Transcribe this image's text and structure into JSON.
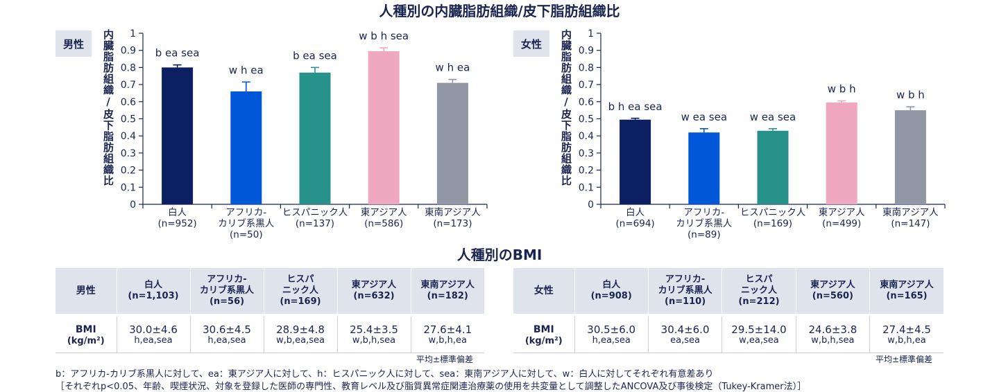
{
  "main_title": "人種別の内臓脂肪組織/皮下脂肪組織比",
  "bmi_title": "人種別のBMI",
  "ylabel": "内臓脂肪組織/皮下脂肪組織比",
  "colors": {
    "white": "#0c1f62",
    "afro": "#0057d8",
    "hispanic": "#27928a",
    "east_asian": "#f0a8c0",
    "southeast_asian": "#8f97a5",
    "axis": "#1a2450"
  },
  "chart_data": [
    {
      "type": "bar",
      "panel": "男性",
      "ylim": [
        0,
        1
      ],
      "yticks": [
        "0",
        "0.1",
        "0.2",
        "0.3",
        "0.4",
        "0.5",
        "0.6",
        "0.7",
        "0.8",
        "0.9",
        "1"
      ],
      "categories": [
        {
          "lines": [
            "白人",
            "(n=952)"
          ]
        },
        {
          "lines": [
            "アフリカ-",
            "カリブ系黒人",
            "(n=50)"
          ]
        },
        {
          "lines": [
            "ヒスパニック人",
            "(n=137)"
          ]
        },
        {
          "lines": [
            "東アジア人",
            "(n=586)"
          ]
        },
        {
          "lines": [
            "東南アジア人",
            "(n=173)"
          ]
        }
      ],
      "values": [
        0.8,
        0.66,
        0.77,
        0.895,
        0.71
      ],
      "errors": [
        0.015,
        0.055,
        0.03,
        0.02,
        0.02
      ],
      "annotations": [
        "b ea sea",
        "w h ea",
        "b ea sea",
        "w b h sea",
        "w h ea"
      ]
    },
    {
      "type": "bar",
      "panel": "女性",
      "ylim": [
        0,
        1
      ],
      "yticks": [
        "0",
        "0.1",
        "0.2",
        "0.3",
        "0.4",
        "0.5",
        "0.6",
        "0.7",
        "0.8",
        "0.9",
        "1"
      ],
      "categories": [
        {
          "lines": [
            "白人",
            "(n=694)"
          ]
        },
        {
          "lines": [
            "アフリカ-",
            "カリブ系黒人",
            "(n=89)"
          ]
        },
        {
          "lines": [
            "ヒスパニック人",
            "(n=169)"
          ]
        },
        {
          "lines": [
            "東アジア人",
            "(n=499)"
          ]
        },
        {
          "lines": [
            "東南アジア人",
            "(n=147)"
          ]
        }
      ],
      "values": [
        0.495,
        0.42,
        0.43,
        0.595,
        0.55
      ],
      "errors": [
        0.008,
        0.022,
        0.012,
        0.01,
        0.02
      ],
      "annotations": [
        "b h ea sea",
        "w ea sea",
        "w ea sea",
        "w b h",
        "w b h"
      ]
    }
  ],
  "bmi_tables": [
    {
      "gender": "男性",
      "headers": [
        {
          "line1": "白人",
          "line2": "(n=1,103)"
        },
        {
          "line1": "アフリカ-",
          "line2": "カリブ系黒人",
          "line3": "(n=56)"
        },
        {
          "line1": "ヒスパ",
          "line2": "ニック人",
          "line3": "(n=169)"
        },
        {
          "line1": "東アジア人",
          "line2": "(n=632)"
        },
        {
          "line1": "東南アジア人",
          "line2": "(n=182)"
        }
      ],
      "row_label": "BMI",
      "row_unit": "(kg/m²)",
      "values": [
        "30.0±4.6",
        "30.6±4.5",
        "28.9±4.8",
        "25.4±3.5",
        "27.6±4.1"
      ],
      "sig": [
        "h,ea,sea",
        "h,ea,sea",
        "w,b,ea,sea",
        "w,b,h,sea",
        "w,b,h,ea"
      ],
      "note": "平均±標準偏差"
    },
    {
      "gender": "女性",
      "headers": [
        {
          "line1": "白人",
          "line2": "(n=908)"
        },
        {
          "line1": "アフリカ-",
          "line2": "カリブ系黒人",
          "line3": "(n=110)"
        },
        {
          "line1": "ヒスパ",
          "line2": "ニック人",
          "line3": "(n=212)"
        },
        {
          "line1": "東アジア人",
          "line2": "(n=560)"
        },
        {
          "line1": "東南アジア人",
          "line2": "(n=165)"
        }
      ],
      "row_label": "BMI",
      "row_unit": "(kg/m²)",
      "values": [
        "30.5±6.0",
        "30.4±6.0",
        "29.5±14.0",
        "24.6±3.8",
        "27.4±4.5"
      ],
      "sig": [
        "h,ea,sea",
        "ea,sea",
        "w,ea,sea",
        "w,b,h,sea",
        "w,b,h,ea"
      ],
      "note": "平均±標準偏差"
    }
  ],
  "footnote1": "b：アフリカ-カリブ系黒人に対して、ea：東アジア人に対して、h：ヒスパニック人に対して、sea：東南アジア人に対して、w：白人に対してそれぞれ有意差あり",
  "footnote2": "［それぞれp<0.05、年齢、喫煙状況、対象を登録した医師の専門性、教育レベル及び脂質異常症関連治療薬の使用を共変量として調整したANCOVA及び事後検定（Tukey-Kramer法）］"
}
